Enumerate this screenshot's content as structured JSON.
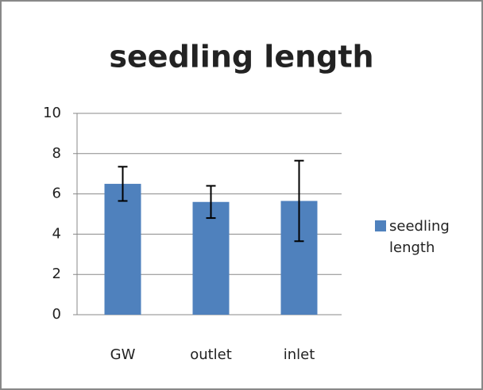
{
  "chart_data": {
    "type": "bar",
    "title": "seedling length",
    "categories": [
      "GW",
      "outlet",
      "inlet"
    ],
    "series": [
      {
        "name": "seedling length",
        "color": "#4f81bd",
        "values": [
          6.5,
          5.6,
          5.65
        ],
        "errors": [
          0.85,
          0.8,
          2.0
        ]
      }
    ],
    "ylim": [
      0,
      10
    ],
    "yticks": [
      0,
      2,
      4,
      6,
      8,
      10
    ],
    "grid": true,
    "legend": "right"
  }
}
